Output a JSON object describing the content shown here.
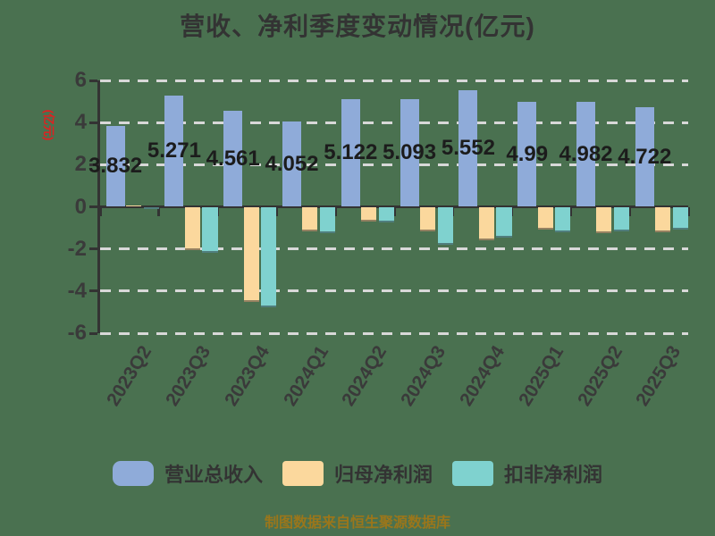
{
  "title": "营收、净利季度变动情况(亿元)",
  "footer": {
    "source_note": "制图数据来自恒生聚源数据库"
  },
  "colors": {
    "background": "#4a7150",
    "grid": "#d8d8d8",
    "axis": "#333333",
    "title_text": "#333333",
    "value_label_text": "#1c1c1c",
    "unit_label_red": "#e02020",
    "source_note_gold": "#9a761b",
    "series_blue": "#8fabd9",
    "series_tan": "#fbd89d",
    "series_cyan": "#7fd2cf"
  },
  "chart_data": {
    "type": "bar",
    "title": "营收、净利季度变动情况(亿元)",
    "ylabel": "(亿元)",
    "xlabel": "",
    "categories": [
      "2023Q2",
      "2023Q3",
      "2023Q4",
      "2024Q1",
      "2024Q2",
      "2024Q3",
      "2024Q4",
      "2025Q1",
      "2025Q2",
      "2025Q3"
    ],
    "series": [
      {
        "name": "营业总收入",
        "color": "#8fabd9",
        "values": [
          3.832,
          5.271,
          4.561,
          4.052,
          5.122,
          5.093,
          5.552,
          4.99,
          4.982,
          4.722
        ],
        "value_labels": [
          "3.832",
          "5.271",
          "4.561",
          "4.052",
          "5.122",
          "5.093",
          "5.552",
          "4.99",
          "4.982",
          "4.722"
        ]
      },
      {
        "name": "归母净利润",
        "color": "#fbd89d",
        "values": [
          0.08,
          -2.05,
          -4.5,
          -1.15,
          -0.7,
          -1.15,
          -1.58,
          -1.1,
          -1.27,
          -1.2
        ]
      },
      {
        "name": "扣非净利润",
        "color": "#7fd2cf",
        "values": [
          -0.06,
          -2.2,
          -4.78,
          -1.27,
          -0.75,
          -1.8,
          -1.45,
          -1.2,
          -1.15,
          -1.1
        ]
      }
    ],
    "yticks": [
      6,
      4,
      2,
      0,
      -2,
      -4,
      -6
    ],
    "ylim": [
      -6,
      6
    ],
    "grid": "dashed-horizontal",
    "legend_position": "bottom"
  }
}
